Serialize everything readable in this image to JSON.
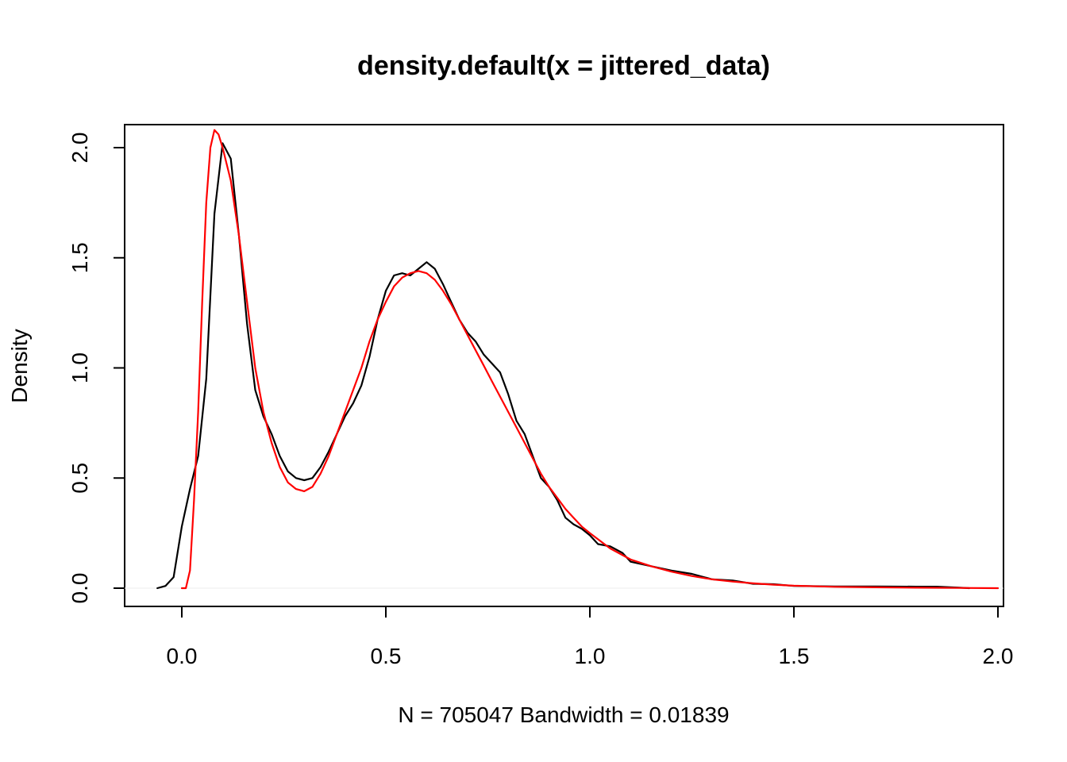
{
  "chart_data": {
    "type": "line",
    "title": "density.default(x = jittered_data)",
    "xlabel": "N = 705047   Bandwidth = 0.01839",
    "ylabel": "Density",
    "xlim": [
      -0.28,
      2.0
    ],
    "ylim": [
      -0.08,
      2.1
    ],
    "x_ticks": [
      0.0,
      0.5,
      1.0,
      1.5,
      2.0
    ],
    "x_tick_labels": [
      "0.0",
      "0.5",
      "1.0",
      "1.5",
      "2.0"
    ],
    "y_ticks": [
      0.0,
      0.5,
      1.0,
      1.5,
      2.0
    ],
    "y_tick_labels": [
      "0.0",
      "0.5",
      "1.0",
      "1.5",
      "2.0"
    ],
    "grid": false,
    "legend": "none",
    "series": [
      {
        "color": "#000000",
        "points": [
          [
            -0.06,
            0.0
          ],
          [
            -0.04,
            0.01
          ],
          [
            -0.02,
            0.05
          ],
          [
            0.0,
            0.28
          ],
          [
            0.02,
            0.45
          ],
          [
            0.04,
            0.6
          ],
          [
            0.06,
            0.95
          ],
          [
            0.08,
            1.7
          ],
          [
            0.1,
            2.02
          ],
          [
            0.12,
            1.95
          ],
          [
            0.14,
            1.6
          ],
          [
            0.16,
            1.2
          ],
          [
            0.18,
            0.9
          ],
          [
            0.2,
            0.78
          ],
          [
            0.22,
            0.7
          ],
          [
            0.24,
            0.6
          ],
          [
            0.26,
            0.53
          ],
          [
            0.28,
            0.5
          ],
          [
            0.3,
            0.49
          ],
          [
            0.32,
            0.5
          ],
          [
            0.34,
            0.55
          ],
          [
            0.36,
            0.62
          ],
          [
            0.38,
            0.7
          ],
          [
            0.4,
            0.78
          ],
          [
            0.42,
            0.84
          ],
          [
            0.44,
            0.92
          ],
          [
            0.46,
            1.05
          ],
          [
            0.48,
            1.22
          ],
          [
            0.5,
            1.35
          ],
          [
            0.52,
            1.42
          ],
          [
            0.54,
            1.43
          ],
          [
            0.56,
            1.42
          ],
          [
            0.58,
            1.45
          ],
          [
            0.6,
            1.48
          ],
          [
            0.62,
            1.45
          ],
          [
            0.64,
            1.38
          ],
          [
            0.66,
            1.3
          ],
          [
            0.68,
            1.22
          ],
          [
            0.7,
            1.16
          ],
          [
            0.72,
            1.12
          ],
          [
            0.74,
            1.06
          ],
          [
            0.76,
            1.02
          ],
          [
            0.78,
            0.98
          ],
          [
            0.8,
            0.88
          ],
          [
            0.82,
            0.76
          ],
          [
            0.84,
            0.7
          ],
          [
            0.86,
            0.6
          ],
          [
            0.88,
            0.5
          ],
          [
            0.9,
            0.46
          ],
          [
            0.92,
            0.4
          ],
          [
            0.94,
            0.32
          ],
          [
            0.96,
            0.29
          ],
          [
            0.98,
            0.27
          ],
          [
            1.0,
            0.24
          ],
          [
            1.02,
            0.2
          ],
          [
            1.05,
            0.19
          ],
          [
            1.08,
            0.16
          ],
          [
            1.1,
            0.12
          ],
          [
            1.15,
            0.1
          ],
          [
            1.2,
            0.08
          ],
          [
            1.25,
            0.065
          ],
          [
            1.3,
            0.04
          ],
          [
            1.35,
            0.035
          ],
          [
            1.4,
            0.02
          ],
          [
            1.45,
            0.018
          ],
          [
            1.5,
            0.01
          ],
          [
            1.6,
            0.008
          ],
          [
            1.7,
            0.008
          ],
          [
            1.8,
            0.007
          ],
          [
            1.85,
            0.007
          ],
          [
            1.9,
            0.003
          ],
          [
            1.93,
            0.0
          ]
        ]
      },
      {
        "color": "#ff0000",
        "points": [
          [
            0.0,
            0.0
          ],
          [
            0.01,
            0.0
          ],
          [
            0.02,
            0.08
          ],
          [
            0.03,
            0.4
          ],
          [
            0.04,
            0.8
          ],
          [
            0.05,
            1.3
          ],
          [
            0.06,
            1.75
          ],
          [
            0.07,
            2.0
          ],
          [
            0.08,
            2.08
          ],
          [
            0.09,
            2.06
          ],
          [
            0.1,
            2.0
          ],
          [
            0.12,
            1.85
          ],
          [
            0.14,
            1.6
          ],
          [
            0.16,
            1.3
          ],
          [
            0.18,
            1.0
          ],
          [
            0.2,
            0.8
          ],
          [
            0.22,
            0.66
          ],
          [
            0.24,
            0.55
          ],
          [
            0.26,
            0.48
          ],
          [
            0.28,
            0.45
          ],
          [
            0.3,
            0.44
          ],
          [
            0.32,
            0.46
          ],
          [
            0.34,
            0.52
          ],
          [
            0.36,
            0.6
          ],
          [
            0.38,
            0.7
          ],
          [
            0.4,
            0.8
          ],
          [
            0.42,
            0.9
          ],
          [
            0.44,
            1.0
          ],
          [
            0.46,
            1.12
          ],
          [
            0.48,
            1.22
          ],
          [
            0.5,
            1.3
          ],
          [
            0.52,
            1.37
          ],
          [
            0.54,
            1.41
          ],
          [
            0.56,
            1.43
          ],
          [
            0.58,
            1.44
          ],
          [
            0.6,
            1.43
          ],
          [
            0.62,
            1.4
          ],
          [
            0.64,
            1.35
          ],
          [
            0.66,
            1.29
          ],
          [
            0.68,
            1.22
          ],
          [
            0.7,
            1.15
          ],
          [
            0.72,
            1.08
          ],
          [
            0.74,
            1.01
          ],
          [
            0.76,
            0.94
          ],
          [
            0.78,
            0.87
          ],
          [
            0.8,
            0.8
          ],
          [
            0.82,
            0.73
          ],
          [
            0.84,
            0.66
          ],
          [
            0.86,
            0.59
          ],
          [
            0.88,
            0.52
          ],
          [
            0.9,
            0.46
          ],
          [
            0.92,
            0.41
          ],
          [
            0.94,
            0.36
          ],
          [
            0.96,
            0.32
          ],
          [
            0.98,
            0.28
          ],
          [
            1.0,
            0.25
          ],
          [
            1.05,
            0.18
          ],
          [
            1.1,
            0.13
          ],
          [
            1.15,
            0.1
          ],
          [
            1.2,
            0.075
          ],
          [
            1.25,
            0.055
          ],
          [
            1.3,
            0.04
          ],
          [
            1.35,
            0.03
          ],
          [
            1.4,
            0.022
          ],
          [
            1.45,
            0.016
          ],
          [
            1.5,
            0.011
          ],
          [
            1.6,
            0.006
          ],
          [
            1.7,
            0.004
          ],
          [
            1.8,
            0.002
          ],
          [
            1.9,
            0.001
          ],
          [
            2.0,
            0.0
          ]
        ]
      }
    ]
  }
}
